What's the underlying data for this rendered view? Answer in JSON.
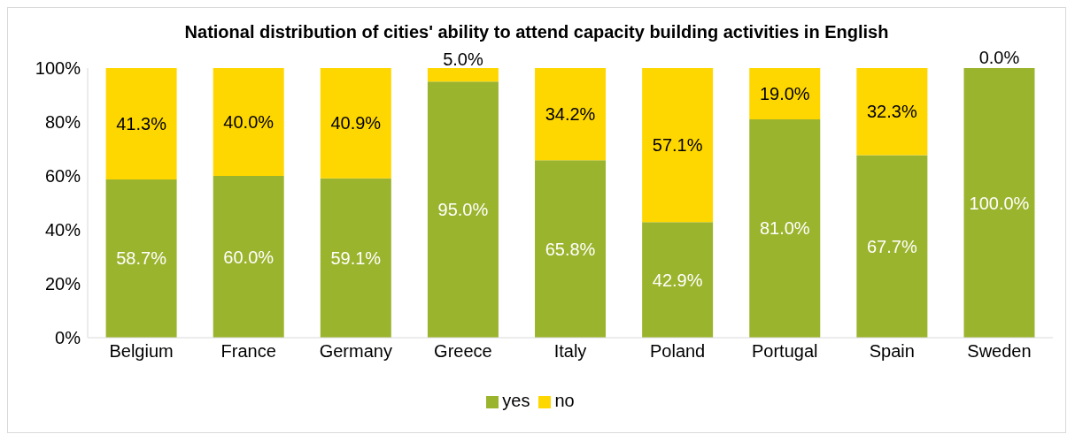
{
  "chart_data": {
    "type": "bar",
    "title": "National distribution of cities' ability to attend capacity building activities in English",
    "categories": [
      "Belgium",
      "France",
      "Germany",
      "Greece",
      "Italy",
      "Poland",
      "Portugal",
      "Spain",
      "Sweden"
    ],
    "stacked": true,
    "series": [
      {
        "name": "yes",
        "color": "#9bb42d",
        "values": [
          58.7,
          60.0,
          59.1,
          95.0,
          65.8,
          42.9,
          81.0,
          67.7,
          100.0
        ],
        "value_labels": [
          "58.7%",
          "60.0%",
          "59.1%",
          "95.0%",
          "65.8%",
          "42.9%",
          "81.0%",
          "67.7%",
          "100.0%"
        ]
      },
      {
        "name": "no",
        "color": "#ffd700",
        "values": [
          41.3,
          40.0,
          40.9,
          5.0,
          34.2,
          57.1,
          19.0,
          32.3,
          0.0
        ],
        "value_labels": [
          "41.3%",
          "40.0%",
          "40.9%",
          "5.0%",
          "34.2%",
          "57.1%",
          "19.0%",
          "32.3%",
          "0.0%"
        ]
      }
    ],
    "ylim": [
      0,
      100
    ],
    "yticks": [
      {
        "value": 0,
        "label": "0%"
      },
      {
        "value": 20,
        "label": "20%"
      },
      {
        "value": 40,
        "label": "40%"
      },
      {
        "value": 60,
        "label": "60%"
      },
      {
        "value": 80,
        "label": "80%"
      },
      {
        "value": 100,
        "label": "100%"
      }
    ],
    "legend": "bottom",
    "grid": false
  }
}
